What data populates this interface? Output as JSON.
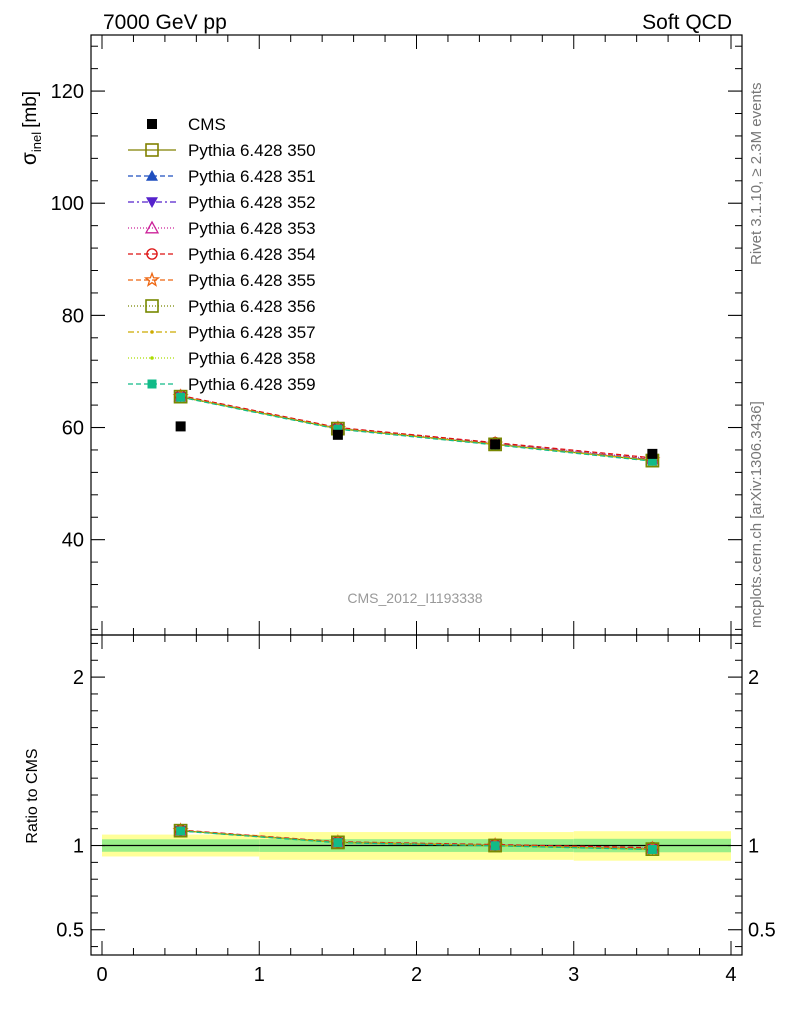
{
  "header": {
    "left": "7000 GeV pp",
    "right": "Soft QCD"
  },
  "side_text": {
    "rivet": "Rivet 3.1.10, ≥ 2.3M events",
    "mcplots": "mcplots.cern.ch [arXiv:1306.3436]"
  },
  "watermark": "CMS_2012_I1193338",
  "chart_data": [
    {
      "type": "scatter",
      "panel": "main",
      "ylabel": "σinel [mb]",
      "ylabel_main": "σ",
      "ylabel_sub": "inel",
      "ylabel_unit": "[mb]",
      "xlim": [
        0,
        4
      ],
      "ylim": [
        23,
        130
      ],
      "yticks": [
        40,
        60,
        80,
        100,
        120
      ],
      "legend_position": "top-left",
      "x": [
        0.5,
        1.5,
        2.5,
        3.5
      ],
      "data": {
        "name": "CMS",
        "values": [
          60.2,
          58.7,
          57.0,
          55.3
        ],
        "color": "#000000"
      },
      "series": [
        {
          "name": "Pythia 6.428 350",
          "color": "#808000",
          "dash": "",
          "marker": "open-square",
          "values": [
            65.5,
            59.8,
            57.0,
            54.1
          ]
        },
        {
          "name": "Pythia 6.428 351",
          "color": "#1f4fbf",
          "dash": "5,3",
          "marker": "filled-triangle-up",
          "values": [
            65.6,
            59.9,
            57.1,
            54.3
          ]
        },
        {
          "name": "Pythia 6.428 352",
          "color": "#5522cc",
          "dash": "6,3,2,3",
          "marker": "filled-triangle-down",
          "values": [
            65.5,
            59.8,
            57.0,
            54.2
          ]
        },
        {
          "name": "Pythia 6.428 353",
          "color": "#cc2299",
          "dash": "1,2",
          "marker": "open-triangle-up",
          "values": [
            65.6,
            59.9,
            57.2,
            54.4
          ]
        },
        {
          "name": "Pythia 6.428 354",
          "color": "#dd1111",
          "dash": "5,3",
          "marker": "open-circle",
          "values": [
            65.7,
            60.0,
            57.3,
            54.6
          ]
        },
        {
          "name": "Pythia 6.428 355",
          "color": "#ee6611",
          "dash": "5,3",
          "marker": "open-star",
          "values": [
            65.5,
            59.8,
            57.0,
            54.2
          ]
        },
        {
          "name": "Pythia 6.428 356",
          "color": "#778800",
          "dash": "1,2",
          "marker": "open-square",
          "values": [
            65.5,
            59.8,
            57.0,
            54.1
          ]
        },
        {
          "name": "Pythia 6.428 357",
          "color": "#ccaa00",
          "dash": "6,3,2,3",
          "marker": "small-dot",
          "values": [
            65.5,
            59.8,
            57.0,
            54.1
          ]
        },
        {
          "name": "Pythia 6.428 358",
          "color": "#aadd00",
          "dash": "1,2",
          "marker": "small-dot",
          "values": [
            65.5,
            59.8,
            57.0,
            54.1
          ]
        },
        {
          "name": "Pythia 6.428 359",
          "color": "#11bb88",
          "dash": "5,3",
          "marker": "filled-square",
          "values": [
            65.4,
            59.7,
            56.9,
            54.0
          ]
        }
      ]
    },
    {
      "type": "line",
      "panel": "ratio",
      "ylabel": "Ratio to CMS",
      "xlim": [
        0,
        4
      ],
      "ylim": [
        0.35,
        2.25
      ],
      "yticks": [
        0.5,
        1,
        2
      ],
      "ytick_labels": [
        "0.5",
        "1",
        "2"
      ],
      "xticks": [
        0,
        1,
        2,
        3,
        4
      ],
      "xtick_labels": [
        "0",
        "1",
        "2",
        "3",
        "4"
      ],
      "x": [
        0.5,
        1.5,
        2.5,
        3.5
      ],
      "bins": [
        [
          0,
          1
        ],
        [
          1,
          2
        ],
        [
          2,
          3
        ],
        [
          3,
          4
        ]
      ],
      "band_inner": [
        [
          0.963,
          1.037
        ],
        [
          0.962,
          1.038
        ],
        [
          0.962,
          1.038
        ],
        [
          0.96,
          1.04
        ]
      ],
      "band_outer": [
        [
          0.935,
          1.065
        ],
        [
          0.915,
          1.08
        ],
        [
          0.915,
          1.08
        ],
        [
          0.91,
          1.085
        ]
      ],
      "reference": 1,
      "ratio_values": [
        1.088,
        1.019,
        1.0,
        0.978
      ],
      "series_color": "#11bb88"
    }
  ]
}
